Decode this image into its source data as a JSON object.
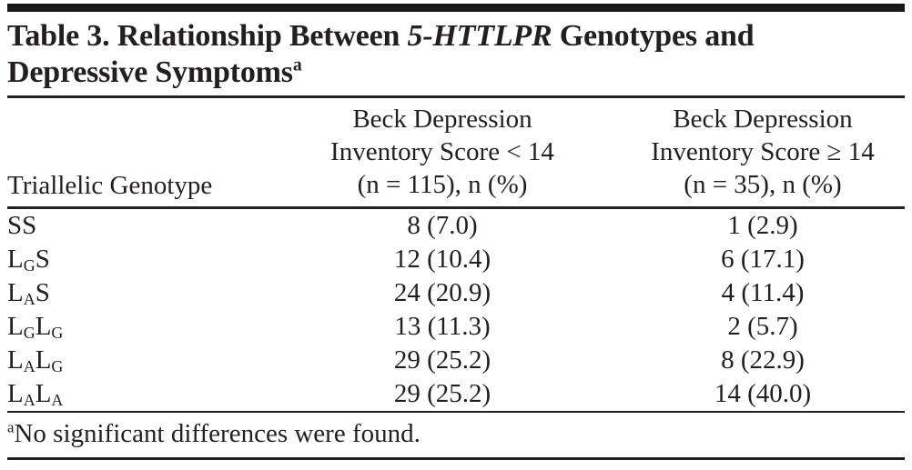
{
  "title": {
    "line1_prefix": "Table 3. Relationship Between ",
    "line1_italic": "5-HTTLPR",
    "line1_suffix": " Genotypes and",
    "line2": "Depressive Symptoms",
    "superscript": "a"
  },
  "table": {
    "header": {
      "genotype": "Triallelic Genotype",
      "bdi_lt14_lines": [
        "Beck Depression",
        "Inventory Score < 14",
        "(n = 115), n (%)"
      ],
      "bdi_ge14_lines": [
        "Beck Depression",
        "Inventory Score ≥ 14",
        "(n = 35), n (%)"
      ]
    },
    "rows": [
      {
        "genotype": [
          {
            "text": "SS"
          }
        ],
        "bdi_lt14": "8 (7.0)",
        "bdi_ge14": "1 (2.9)"
      },
      {
        "genotype": [
          {
            "text": "L"
          },
          {
            "sub": "G"
          },
          {
            "text": "S"
          }
        ],
        "bdi_lt14": "12 (10.4)",
        "bdi_ge14": "6 (17.1)"
      },
      {
        "genotype": [
          {
            "text": "L"
          },
          {
            "sub": "A"
          },
          {
            "text": "S"
          }
        ],
        "bdi_lt14": "24 (20.9)",
        "bdi_ge14": "4 (11.4)"
      },
      {
        "genotype": [
          {
            "text": "L"
          },
          {
            "sub": "G"
          },
          {
            "text": "L"
          },
          {
            "sub": "G"
          }
        ],
        "bdi_lt14": "13 (11.3)",
        "bdi_ge14": "2 (5.7)"
      },
      {
        "genotype": [
          {
            "text": "L"
          },
          {
            "sub": "A"
          },
          {
            "text": "L"
          },
          {
            "sub": "G"
          }
        ],
        "bdi_lt14": "29 (25.2)",
        "bdi_ge14": "8 (22.9)"
      },
      {
        "genotype": [
          {
            "text": "L"
          },
          {
            "sub": "A"
          },
          {
            "text": "L"
          },
          {
            "sub": "A"
          }
        ],
        "bdi_lt14": "29 (25.2)",
        "bdi_ge14": "14 (40.0)"
      }
    ]
  },
  "footnote": {
    "marker": "a",
    "text": "No significant differences were found."
  },
  "colors": {
    "ink": "#231f20",
    "bar": "#1a1718",
    "background": "#ffffff"
  }
}
